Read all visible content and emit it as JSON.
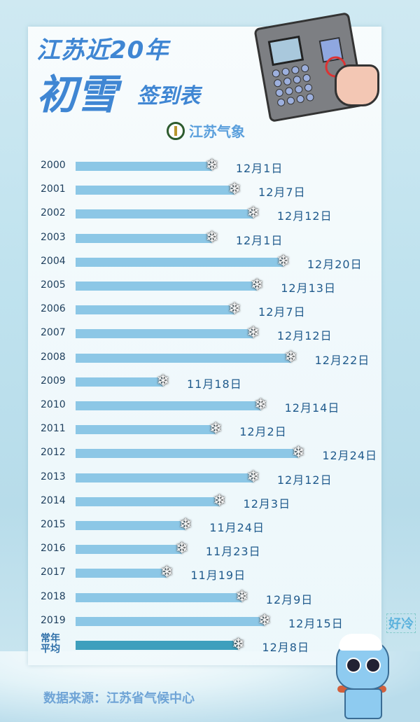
{
  "header": {
    "title_line1": "江苏近20年",
    "title_big": "初雪",
    "title_small": "签到表",
    "brand": "江苏气象"
  },
  "chart_data": {
    "type": "bar",
    "orientation": "horizontal",
    "title": "江苏近20年初雪签到表",
    "xlabel": "",
    "ylabel": "",
    "value_unit": "date of first snow",
    "categories": [
      "2000",
      "2001",
      "2002",
      "2003",
      "2004",
      "2005",
      "2006",
      "2007",
      "2008",
      "2009",
      "2010",
      "2011",
      "2012",
      "2013",
      "2014",
      "2015",
      "2016",
      "2017",
      "2018",
      "2019"
    ],
    "labels": [
      "12月1日",
      "12月7日",
      "12月12日",
      "12月1日",
      "12月20日",
      "12月13日",
      "12月7日",
      "12月12日",
      "12月22日",
      "11月18日",
      "12月14日",
      "12月2日",
      "12月24日",
      "12月12日",
      "12月3日",
      "11月24日",
      "11月23日",
      "11月19日",
      "12月9日",
      "12月15日"
    ],
    "values_day_of_season": [
      31,
      37,
      42,
      31,
      50,
      43,
      37,
      42,
      52,
      18,
      44,
      32,
      54,
      42,
      33,
      24,
      23,
      19,
      39,
      45
    ],
    "average": {
      "label": "常年平均",
      "label_line1": "常年",
      "label_line2": "平均",
      "date": "12月8日",
      "value_day_of_season": 38
    },
    "colors": {
      "bar": "#8cc7e6",
      "average_bar": "#3e9fbd",
      "label": "#1f5a8c"
    }
  },
  "footer": {
    "source": "数据来源：江苏省气候中心",
    "mascot_speech": "好冷"
  }
}
